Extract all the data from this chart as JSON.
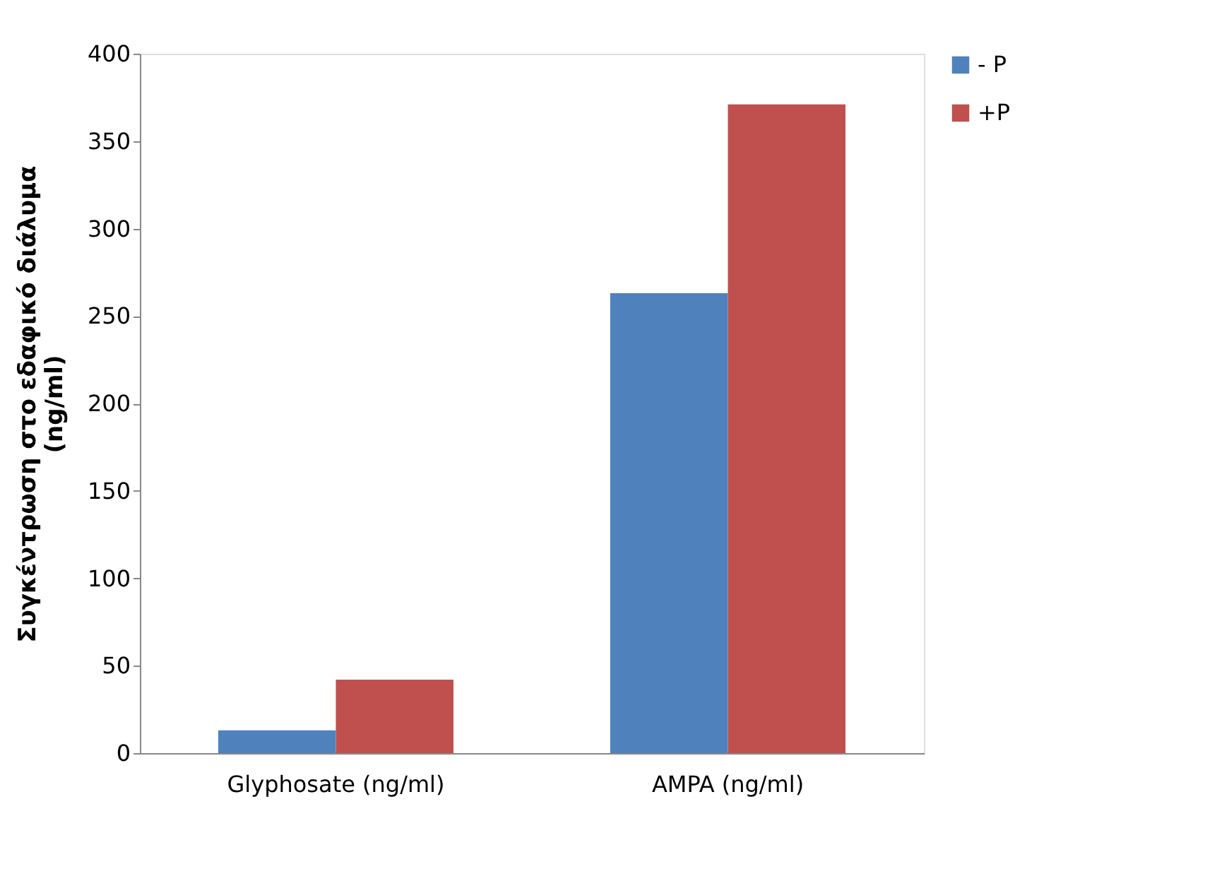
{
  "chart_data": {
    "type": "bar",
    "ylabel": "Συγκέντρωση στο εδαφικό διάλυμα\n(ng/ml)",
    "categories": [
      "Glyphosate (ng/ml)",
      "AMPA (ng/ml)"
    ],
    "series": [
      {
        "name": "- P",
        "color": "#4f81bd",
        "values": [
          13,
          263
        ]
      },
      {
        "name": "+P",
        "color": "#c0504d",
        "values": [
          42,
          371
        ]
      }
    ],
    "ylim": [
      0,
      400
    ],
    "yticks": [
      0,
      50,
      100,
      150,
      200,
      250,
      300,
      350,
      400
    ],
    "grid": false,
    "legend": "right"
  }
}
